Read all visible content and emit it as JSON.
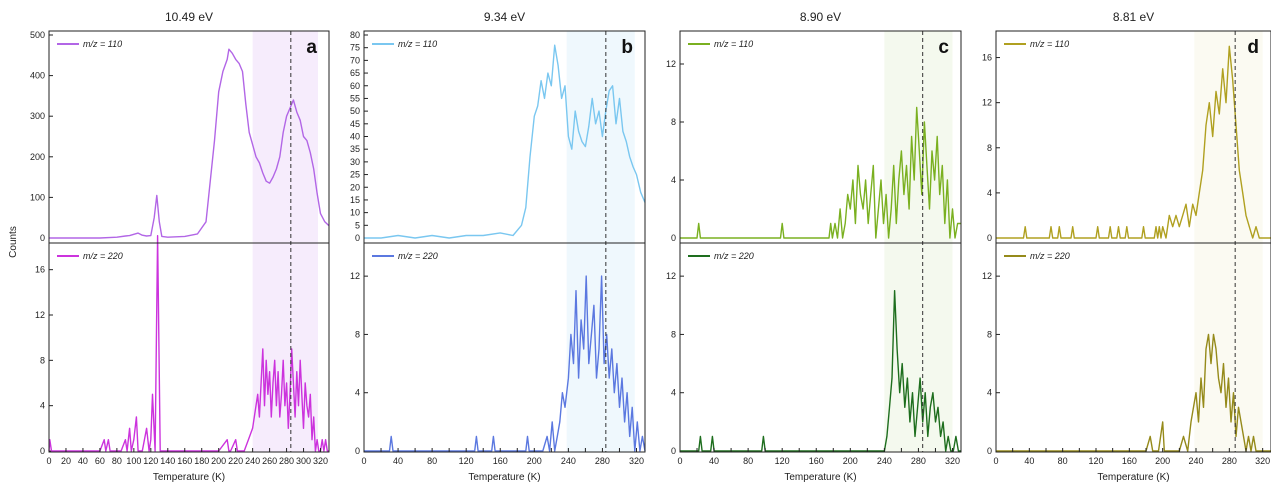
{
  "figure": {
    "ylabel": "Counts",
    "xlabel": "Temperature (K)"
  },
  "chart_data": [
    {
      "type": "line",
      "title": "10.49 eV",
      "panel_label": "a",
      "color_top": "#b266e6",
      "color_bottom": "#cc33dd",
      "shade_color": "#b266e6",
      "shade_range": [
        240,
        317
      ],
      "dashed_line_x": 285,
      "xlim": [
        0,
        330
      ],
      "xticks": [
        0,
        20,
        40,
        60,
        80,
        100,
        120,
        140,
        160,
        180,
        200,
        220,
        240,
        260,
        280,
        300,
        320
      ],
      "xticklabels": [
        "0",
        "20",
        "40",
        "60",
        "80",
        "100",
        "120",
        "140",
        "160",
        "180",
        "200",
        "220",
        "240",
        "260",
        "280",
        "300",
        "320"
      ],
      "top": {
        "name": "m/z = 110",
        "ylim": [
          0,
          500
        ],
        "yticks": [
          0,
          100,
          200,
          300,
          400,
          500
        ],
        "x": [
          0,
          20,
          40,
          60,
          80,
          90,
          95,
          100,
          105,
          110,
          115,
          120,
          124,
          127,
          130,
          133,
          140,
          160,
          175,
          185,
          195,
          200,
          205,
          210,
          212,
          216,
          220,
          224,
          228,
          232,
          236,
          240,
          244,
          248,
          252,
          256,
          260,
          264,
          268,
          272,
          276,
          280,
          284,
          288,
          292,
          296,
          300,
          304,
          308,
          312,
          316,
          320,
          325,
          330
        ],
        "values": [
          0,
          0,
          0,
          0,
          2,
          5,
          6,
          9,
          12,
          7,
          5,
          6,
          50,
          105,
          40,
          4,
          2,
          4,
          10,
          40,
          240,
          360,
          410,
          440,
          465,
          455,
          440,
          430,
          410,
          330,
          260,
          230,
          200,
          185,
          160,
          140,
          135,
          150,
          170,
          200,
          260,
          300,
          320,
          340,
          310,
          290,
          250,
          240,
          210,
          170,
          110,
          60,
          40,
          30
        ]
      },
      "bottom": {
        "name": "m/z = 220",
        "ylim": [
          0,
          18
        ],
        "yticks": [
          0,
          4,
          8,
          12,
          16
        ],
        "x": [
          0,
          1,
          3,
          10,
          60,
          65,
          67,
          70,
          72,
          75,
          85,
          90,
          92,
          95,
          97,
          100,
          103,
          105,
          107,
          110,
          115,
          118,
          120,
          122,
          125,
          128,
          131,
          135,
          150,
          200,
          210,
          212,
          214,
          220,
          222,
          224,
          230,
          235,
          240,
          244,
          246,
          248,
          250,
          252,
          254,
          256,
          258,
          260,
          262,
          264,
          266,
          268,
          270,
          272,
          274,
          276,
          278,
          280,
          282,
          284,
          286,
          288,
          290,
          292,
          294,
          296,
          298,
          300,
          302,
          304,
          306,
          308,
          310,
          312,
          314,
          316,
          318,
          320,
          322,
          324,
          326,
          328,
          330
        ],
        "values": [
          0,
          1,
          0,
          0,
          0,
          1,
          0,
          1,
          0,
          0,
          0,
          1,
          0,
          2,
          0,
          1,
          3,
          0,
          0,
          0,
          2,
          0,
          1,
          5,
          0,
          19,
          0,
          0,
          0,
          0,
          1,
          0,
          0,
          1,
          0,
          0,
          0,
          1,
          2,
          4,
          5,
          3,
          6,
          9,
          4,
          8,
          5,
          7,
          3,
          6,
          8,
          4,
          7,
          3,
          5,
          8,
          4,
          6,
          2,
          5,
          9,
          6,
          3,
          7,
          4,
          8,
          5,
          2,
          6,
          4,
          3,
          5,
          1,
          3,
          0,
          1,
          0,
          0,
          1,
          0,
          1,
          0,
          0
        ]
      }
    },
    {
      "type": "line",
      "title": "9.34 eV",
      "panel_label": "b",
      "color_top": "#7ac7f0",
      "color_bottom": "#5b78e0",
      "shade_color": "#7ac7f0",
      "shade_range": [
        238,
        318
      ],
      "dashed_line_x": 284,
      "xlim": [
        0,
        330
      ],
      "xticks": [
        0,
        20,
        40,
        60,
        80,
        100,
        120,
        140,
        160,
        180,
        200,
        220,
        240,
        260,
        280,
        300,
        320
      ],
      "xticklabels": [
        "0",
        "",
        "40",
        "",
        "80",
        "",
        "120",
        "",
        "160",
        "",
        "200",
        "",
        "240",
        "",
        "280",
        "",
        "320"
      ],
      "top": {
        "name": "m/z = 110",
        "ylim": [
          0,
          80
        ],
        "yticks": [
          0,
          5,
          10,
          15,
          20,
          25,
          30,
          35,
          40,
          45,
          50,
          55,
          60,
          65,
          70,
          75,
          80
        ],
        "x": [
          0,
          20,
          40,
          60,
          80,
          100,
          120,
          140,
          160,
          175,
          185,
          190,
          195,
          200,
          204,
          208,
          212,
          216,
          220,
          224,
          228,
          232,
          236,
          240,
          244,
          248,
          252,
          256,
          260,
          264,
          268,
          272,
          276,
          280,
          284,
          288,
          292,
          296,
          300,
          304,
          308,
          312,
          316,
          320,
          325,
          330
        ],
        "values": [
          0,
          0,
          1,
          0,
          1,
          0,
          1,
          1,
          2,
          1,
          5,
          12,
          32,
          48,
          52,
          62,
          55,
          65,
          60,
          76,
          68,
          55,
          60,
          40,
          35,
          50,
          42,
          38,
          36,
          44,
          55,
          45,
          50,
          40,
          50,
          58,
          60,
          45,
          55,
          42,
          38,
          32,
          28,
          25,
          18,
          14
        ]
      },
      "bottom": {
        "name": "m/z = 220",
        "ylim": [
          0,
          14
        ],
        "yticks": [
          0,
          4,
          8,
          12
        ],
        "x": [
          0,
          30,
          32,
          34,
          60,
          100,
          130,
          132,
          134,
          150,
          152,
          154,
          190,
          192,
          194,
          210,
          215,
          218,
          221,
          224,
          227,
          230,
          233,
          236,
          240,
          243,
          246,
          249,
          252,
          255,
          258,
          261,
          264,
          267,
          270,
          273,
          276,
          279,
          282,
          285,
          288,
          291,
          294,
          297,
          300,
          303,
          306,
          309,
          312,
          315,
          318,
          321,
          324,
          327,
          330
        ],
        "values": [
          0,
          0,
          1,
          0,
          0,
          0,
          0,
          1,
          0,
          0,
          1,
          0,
          0,
          1,
          0,
          0,
          1,
          0,
          2,
          0,
          1,
          2,
          4,
          3,
          5,
          8,
          6,
          11,
          5,
          9,
          7,
          12,
          6,
          8,
          10,
          5,
          7,
          12,
          6,
          8,
          5,
          7,
          4,
          6,
          3,
          5,
          2,
          4,
          1,
          3,
          0,
          2,
          0,
          1,
          0
        ]
      }
    },
    {
      "type": "line",
      "title": "8.90 eV",
      "panel_label": "c",
      "color_top": "#7ab020",
      "color_bottom": "#1e6e1e",
      "shade_color": "#a8d070",
      "shade_range": [
        240,
        320
      ],
      "dashed_line_x": 285,
      "xlim": [
        0,
        330
      ],
      "xticks": [
        0,
        20,
        40,
        60,
        80,
        100,
        120,
        140,
        160,
        180,
        200,
        220,
        240,
        260,
        280,
        300,
        320
      ],
      "xticklabels": [
        "0",
        "",
        "40",
        "",
        "80",
        "",
        "120",
        "",
        "160",
        "",
        "200",
        "",
        "240",
        "",
        "280",
        "",
        "320"
      ],
      "top": {
        "name": "m/z = 110",
        "ylim": [
          0,
          14
        ],
        "yticks": [
          0,
          4,
          8,
          12
        ],
        "x": [
          0,
          20,
          22,
          24,
          60,
          100,
          118,
          120,
          122,
          150,
          175,
          177,
          179,
          182,
          185,
          188,
          191,
          194,
          197,
          200,
          203,
          206,
          209,
          212,
          215,
          218,
          221,
          224,
          227,
          230,
          233,
          236,
          239,
          242,
          245,
          248,
          251,
          254,
          257,
          260,
          263,
          266,
          269,
          272,
          275,
          278,
          281,
          284,
          287,
          290,
          293,
          296,
          299,
          302,
          305,
          308,
          311,
          314,
          317,
          320,
          323,
          326,
          330
        ],
        "values": [
          0,
          0,
          1,
          0,
          0,
          0,
          0,
          1,
          0,
          0,
          0,
          1,
          0,
          1,
          0,
          2,
          0,
          1,
          3,
          2,
          4,
          1,
          5,
          3,
          2,
          4,
          1,
          3,
          5,
          0,
          2,
          4,
          1,
          3,
          0,
          2,
          5,
          1,
          4,
          6,
          3,
          5,
          2,
          7,
          4,
          9,
          6,
          3,
          8,
          5,
          2,
          6,
          4,
          7,
          3,
          5,
          1,
          4,
          0,
          2,
          0,
          1,
          1
        ]
      },
      "bottom": {
        "name": "m/z = 220",
        "ylim": [
          0,
          14
        ],
        "yticks": [
          0,
          4,
          8,
          12
        ],
        "x": [
          0,
          22,
          24,
          26,
          36,
          38,
          40,
          60,
          96,
          98,
          100,
          150,
          200,
          240,
          243,
          246,
          249,
          252,
          255,
          258,
          261,
          264,
          267,
          270,
          273,
          276,
          279,
          282,
          285,
          288,
          291,
          294,
          297,
          300,
          303,
          306,
          309,
          312,
          315,
          318,
          321,
          324,
          327,
          330
        ],
        "values": [
          0,
          0,
          1,
          0,
          0,
          1,
          0,
          0,
          0,
          1,
          0,
          0,
          0,
          0,
          1,
          3,
          5,
          11,
          7,
          4,
          6,
          3,
          5,
          2,
          4,
          1,
          3,
          5,
          2,
          4,
          1,
          3,
          4,
          2,
          3,
          1,
          2,
          0,
          1,
          0,
          0,
          1,
          0,
          0
        ]
      }
    },
    {
      "type": "line",
      "title": "8.81 eV",
      "panel_label": "d",
      "color_top": "#b0a020",
      "color_bottom": "#958a1a",
      "shade_color": "#e0d890",
      "shade_range": [
        238,
        320
      ],
      "dashed_line_x": 287,
      "xlim": [
        0,
        330
      ],
      "xticks": [
        0,
        20,
        40,
        60,
        80,
        100,
        120,
        140,
        160,
        180,
        200,
        220,
        240,
        260,
        280,
        300,
        320
      ],
      "xticklabels": [
        "0",
        "",
        "40",
        "",
        "80",
        "",
        "120",
        "",
        "160",
        "",
        "200",
        "",
        "240",
        "",
        "280",
        "",
        "320"
      ],
      "top": {
        "name": "m/z = 110",
        "ylim": [
          0,
          18
        ],
        "yticks": [
          0,
          4,
          8,
          12,
          16
        ],
        "x": [
          0,
          33,
          35,
          37,
          60,
          64,
          66,
          68,
          74,
          76,
          78,
          90,
          92,
          94,
          120,
          122,
          124,
          135,
          137,
          139,
          145,
          147,
          149,
          155,
          157,
          159,
          175,
          177,
          179,
          190,
          192,
          194,
          196,
          198,
          200,
          204,
          208,
          212,
          216,
          220,
          224,
          228,
          232,
          236,
          240,
          244,
          248,
          252,
          256,
          260,
          264,
          268,
          272,
          276,
          280,
          284,
          288,
          292,
          296,
          300,
          304,
          308,
          312,
          316,
          320,
          325,
          330
        ],
        "values": [
          0,
          0,
          1,
          0,
          0,
          0,
          1,
          0,
          0,
          1,
          0,
          0,
          1,
          0,
          0,
          1,
          0,
          0,
          1,
          0,
          0,
          1,
          0,
          0,
          1,
          0,
          0,
          1,
          0,
          0,
          1,
          0,
          1,
          0,
          1,
          0,
          2,
          1,
          2,
          1,
          2,
          3,
          1,
          3,
          2,
          4,
          6,
          10,
          12,
          9,
          13,
          11,
          15,
          12,
          17,
          14,
          10,
          6,
          4,
          2,
          1,
          0,
          1,
          0,
          0,
          0,
          0
        ]
      },
      "bottom": {
        "name": "m/z = 220",
        "ylim": [
          0,
          14
        ],
        "yticks": [
          0,
          4,
          8,
          12
        ],
        "x": [
          0,
          180,
          185,
          188,
          195,
          200,
          202,
          205,
          220,
          225,
          230,
          234,
          237,
          240,
          243,
          246,
          249,
          252,
          255,
          258,
          261,
          264,
          267,
          270,
          273,
          276,
          279,
          282,
          285,
          288,
          291,
          294,
          297,
          300,
          303,
          306,
          309,
          312,
          315,
          320,
          325,
          330
        ],
        "values": [
          0,
          0,
          1,
          0,
          0,
          2,
          0,
          0,
          0,
          1,
          0,
          2,
          3,
          4,
          2,
          5,
          3,
          7,
          8,
          6,
          8,
          7,
          5,
          4,
          6,
          3,
          5,
          2,
          4,
          1,
          3,
          2,
          1,
          0,
          1,
          0,
          1,
          0,
          0,
          0,
          0,
          0
        ]
      }
    }
  ]
}
